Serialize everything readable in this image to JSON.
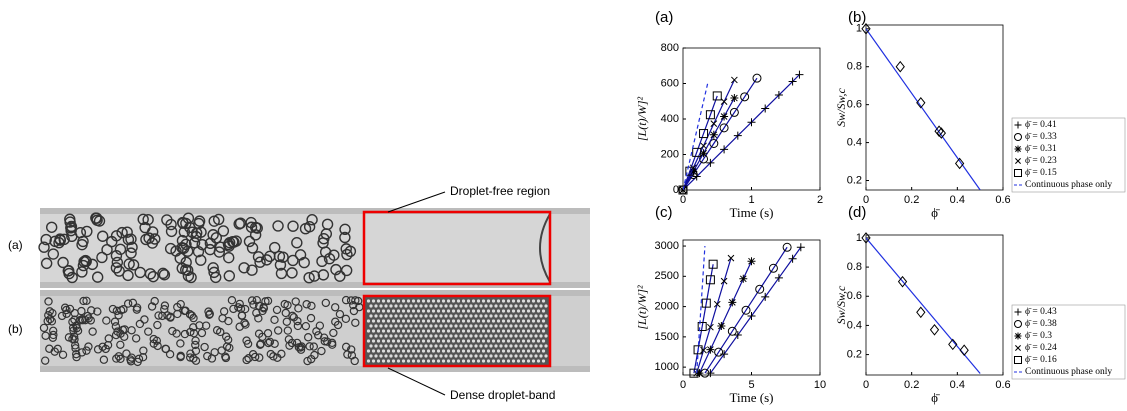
{
  "photo": {
    "labels": [
      "(a)",
      "(b)"
    ],
    "annotations": [
      "Droplet-free region",
      "Dense droplet-band"
    ]
  },
  "chart_data": [
    {
      "type": "line",
      "panel": "(a)",
      "xlabel": "Time (s)",
      "ylabel": "[L(t)/W]²",
      "xlim": [
        0,
        2
      ],
      "xticks": [
        0,
        1,
        2
      ],
      "ylim": [
        0,
        800
      ],
      "yticks": [
        0,
        200,
        400,
        600,
        800
      ],
      "series": [
        {
          "name": "ϕ̄ = 0.41",
          "color": "#1010a0",
          "marker": "plus",
          "x": [
            0,
            0.2,
            0.4,
            0.6,
            0.8,
            1.0,
            1.2,
            1.4,
            1.6,
            1.7
          ],
          "values": [
            0,
            76,
            153,
            229,
            306,
            382,
            459,
            535,
            611,
            650
          ]
        },
        {
          "name": "ϕ̄ = 0.33",
          "color": "#1010a0",
          "marker": "circle",
          "x": [
            0,
            0.15,
            0.3,
            0.45,
            0.6,
            0.75,
            0.9,
            1.08
          ],
          "values": [
            0,
            87,
            175,
            262,
            350,
            437,
            525,
            630
          ]
        },
        {
          "name": "ϕ̄ = 0.31",
          "color": "#1010a0",
          "marker": "asterisk",
          "x": [
            0,
            0.15,
            0.3,
            0.45,
            0.6,
            0.75
          ],
          "values": [
            0,
            104,
            207,
            311,
            414,
            518
          ]
        },
        {
          "name": "ϕ̄ = 0.23",
          "color": "#1010a0",
          "marker": "x",
          "x": [
            0,
            0.15,
            0.3,
            0.45,
            0.6,
            0.75
          ],
          "values": [
            0,
            125,
            249,
            374,
            498,
            620
          ]
        },
        {
          "name": "ϕ̄ = 0.15",
          "color": "#1010a0",
          "marker": "square",
          "x": [
            0,
            0.1,
            0.2,
            0.3,
            0.4,
            0.5
          ],
          "values": [
            0,
            106,
            212,
            318,
            424,
            530
          ]
        },
        {
          "name": "Continuous phase only",
          "color": "#2030e0",
          "dashed": true,
          "x": [
            0,
            0.36
          ],
          "values": [
            0,
            600
          ]
        }
      ]
    },
    {
      "type": "scatter",
      "panel": "(b)",
      "xlabel": "ϕ̄",
      "ylabel": "Sw/Sw,c",
      "xlim": [
        0,
        0.6
      ],
      "xticks": [
        0,
        0.2,
        0.4,
        0.6
      ],
      "ylim": [
        0.15,
        1.02
      ],
      "yticks": [
        0.2,
        0.4,
        0.6,
        0.8,
        1
      ],
      "x": [
        0,
        0.15,
        0.24,
        0.32,
        0.33,
        0.41
      ],
      "values": [
        1,
        0.8,
        0.61,
        0.46,
        0.45,
        0.29
      ],
      "color": "#2030e0",
      "fit": {
        "x": [
          0,
          0.5
        ],
        "values": [
          1,
          0.15
        ]
      }
    },
    {
      "type": "line",
      "panel": "(c)",
      "xlabel": "Time (s)",
      "ylabel": "[L(t)/W]²",
      "xlim": [
        0,
        10
      ],
      "xticks": [
        0,
        5,
        10
      ],
      "ylim": [
        870,
        3100
      ],
      "yticks": [
        1000,
        1500,
        2000,
        2500,
        3000
      ],
      "series": [
        {
          "name": "ϕ̄ = 0.43",
          "color": "#1010a0",
          "marker": "plus",
          "x": [
            2,
            3,
            4,
            5,
            6,
            7,
            8,
            8.6
          ],
          "values": [
            900,
            1215,
            1530,
            1845,
            2160,
            2475,
            2790,
            2980
          ]
        },
        {
          "name": "ϕ̄ = 0.38",
          "color": "#1010a0",
          "marker": "circle",
          "x": [
            1.6,
            2.6,
            3.6,
            4.6,
            5.6,
            6.6,
            7.6
          ],
          "values": [
            900,
            1247,
            1593,
            1940,
            2287,
            2633,
            2980
          ]
        },
        {
          "name": "ϕ̄ = 0.3",
          "color": "#1010a0",
          "marker": "asterisk",
          "x": [
            1.2,
            2.0,
            2.8,
            3.6,
            4.4,
            5.0
          ],
          "values": [
            900,
            1290,
            1679,
            2069,
            2459,
            2750
          ]
        },
        {
          "name": "ϕ̄ = 0.24",
          "color": "#1010a0",
          "marker": "x",
          "x": [
            1.0,
            1.5,
            2.0,
            2.5,
            3.0,
            3.5
          ],
          "values": [
            900,
            1280,
            1660,
            2040,
            2420,
            2800
          ]
        },
        {
          "name": "ϕ̄ = 0.16",
          "color": "#1010a0",
          "marker": "square",
          "x": [
            0.8,
            1.1,
            1.4,
            1.7,
            2.0,
            2.2
          ],
          "values": [
            900,
            1286,
            1671,
            2057,
            2443,
            2700
          ]
        },
        {
          "name": "Continuous phase only",
          "color": "#2030e0",
          "dashed": true,
          "x": [
            1.0,
            1.6
          ],
          "values": [
            900,
            3000
          ]
        }
      ]
    },
    {
      "type": "scatter",
      "panel": "(d)",
      "xlabel": "ϕ̄",
      "ylabel": "Sw/Sw,c",
      "xlim": [
        0,
        0.6
      ],
      "xticks": [
        0,
        0.2,
        0.4,
        0.6
      ],
      "ylim": [
        0.06,
        1.02
      ],
      "yticks": [
        0.2,
        0.4,
        0.6,
        0.8,
        1
      ],
      "x": [
        0,
        0.16,
        0.24,
        0.3,
        0.38,
        0.43
      ],
      "values": [
        1,
        0.7,
        0.49,
        0.37,
        0.27,
        0.23
      ],
      "color": "#2030e0",
      "fit": {
        "x": [
          0,
          0.5
        ],
        "values": [
          1,
          0.07
        ]
      }
    }
  ]
}
